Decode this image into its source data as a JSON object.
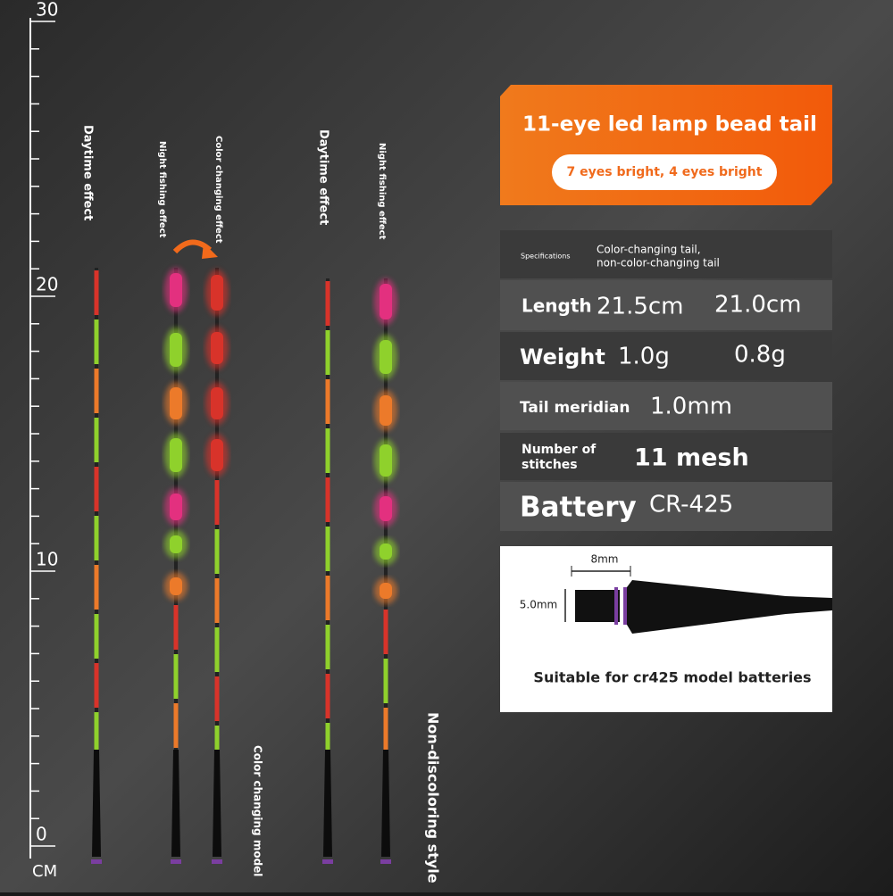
{
  "ruler": {
    "labels": [
      30,
      20,
      10,
      0
    ],
    "unit": "CM"
  },
  "float_labels": [
    "Daytime effect",
    "Night fishing effect",
    "Color changing effect",
    "Daytime effect",
    "Night fishing effect"
  ],
  "group_labels": [
    "Color changing model",
    "Non-discoloring style"
  ],
  "banner": {
    "title": "11-eye led lamp bead tail",
    "subtitle": "7 eyes bright, 4 eyes bright"
  },
  "specs": {
    "header": {
      "label": "Specifications",
      "value": [
        "Color-changing tail,",
        "non-color-changing tail"
      ]
    },
    "rows": [
      {
        "label": "Length",
        "values": [
          "21.5cm",
          "21.0cm"
        ]
      },
      {
        "label": "Weight",
        "values": [
          "1.0g",
          "0.8g"
        ]
      },
      {
        "label": "Tail meridian",
        "values": [
          "1.0mm"
        ]
      },
      {
        "label": [
          "Number of",
          "stitches"
        ],
        "values": [
          "11 mesh"
        ]
      },
      {
        "label": "Battery",
        "values": [
          "CR-425"
        ]
      }
    ]
  },
  "diagram": {
    "width": "8mm",
    "diameter": "5.0mm",
    "caption": "Suitable for cr425 model batteries"
  }
}
